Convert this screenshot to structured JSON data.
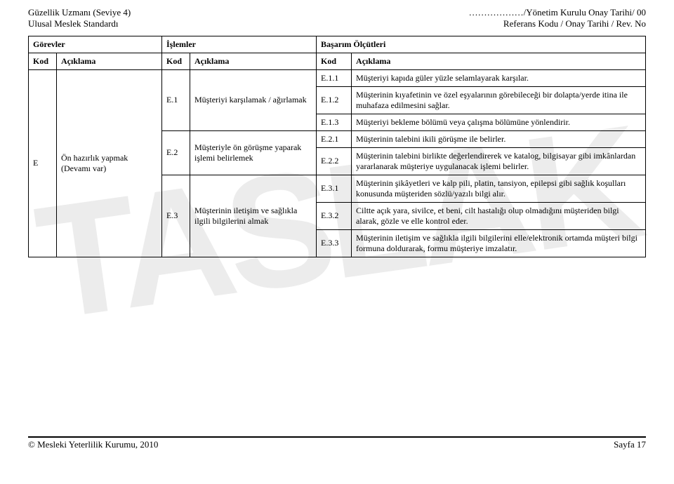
{
  "header": {
    "left_line1": "Güzellik Uzmanı (Seviye 4)",
    "left_line2": "Ulusal Meslek Standardı",
    "right_line1_prefix": "………………",
    "right_line1": "/Yönetim Kurulu Onay Tarihi/ 00",
    "right_line2": "Referans Kodu / Onay Tarihi / Rev. No"
  },
  "watermark": "TASLAK",
  "table": {
    "headers": {
      "gorevler": "Görevler",
      "islemler": "İşlemler",
      "basari": "Başarım Ölçütleri",
      "kod": "Kod",
      "aciklama": "Açıklama"
    },
    "task": {
      "kod": "E",
      "aciklama": "Ön hazırlık yapmak (Devamı var)"
    },
    "ops": [
      {
        "kod": "E.1",
        "aciklama": "Müşteriyi karşılamak / ağırlamak"
      },
      {
        "kod": "E.2",
        "aciklama": "Müşteriyle ön görüşme yaparak işlemi belirlemek"
      },
      {
        "kod": "E.3",
        "aciklama": "Müşterinin iletişim ve sağlıkla ilgili bilgilerini almak"
      }
    ],
    "criteria": [
      {
        "kod": "E.1.1",
        "aciklama": "Müşteriyi kapıda güler yüzle selamlayarak karşılar."
      },
      {
        "kod": "E.1.2",
        "aciklama": "Müşterinin kıyafetinin ve özel eşyalarının görebileceği bir dolapta/yerde itina ile muhafaza edilmesini sağlar."
      },
      {
        "kod": "E.1.3",
        "aciklama": "Müşteriyi bekleme bölümü veya çalışma bölümüne yönlendirir."
      },
      {
        "kod": "E.2.1",
        "aciklama": "Müşterinin talebini ikili görüşme ile belirler."
      },
      {
        "kod": "E.2.2",
        "aciklama": "Müşterinin talebini birlikte değerlendirerek ve katalog, bilgisayar gibi imkânlardan yararlanarak müşteriye uygulanacak işlemi belirler."
      },
      {
        "kod": "E.3.1",
        "aciklama": "Müşterinin şikâyetleri ve kalp pili, platin, tansiyon, epilepsi gibi sağlık koşulları konusunda müşteriden sözlü/yazılı bilgi alır."
      },
      {
        "kod": "E.3.2",
        "aciklama": "Ciltte açık yara, sivilce, et beni, cilt hastalığı olup olmadığını müşteriden bilgi alarak, gözle ve elle kontrol eder."
      },
      {
        "kod": "E.3.3",
        "aciklama": "Müşterinin iletişim ve sağlıkla ilgili bilgilerini elle/elektronik ortamda müşteri bilgi formuna doldurarak, formu müşteriye imzalatır."
      }
    ]
  },
  "footer": {
    "left": "© Mesleki Yeterlilik Kurumu, 2010",
    "right": "Sayfa 17"
  }
}
